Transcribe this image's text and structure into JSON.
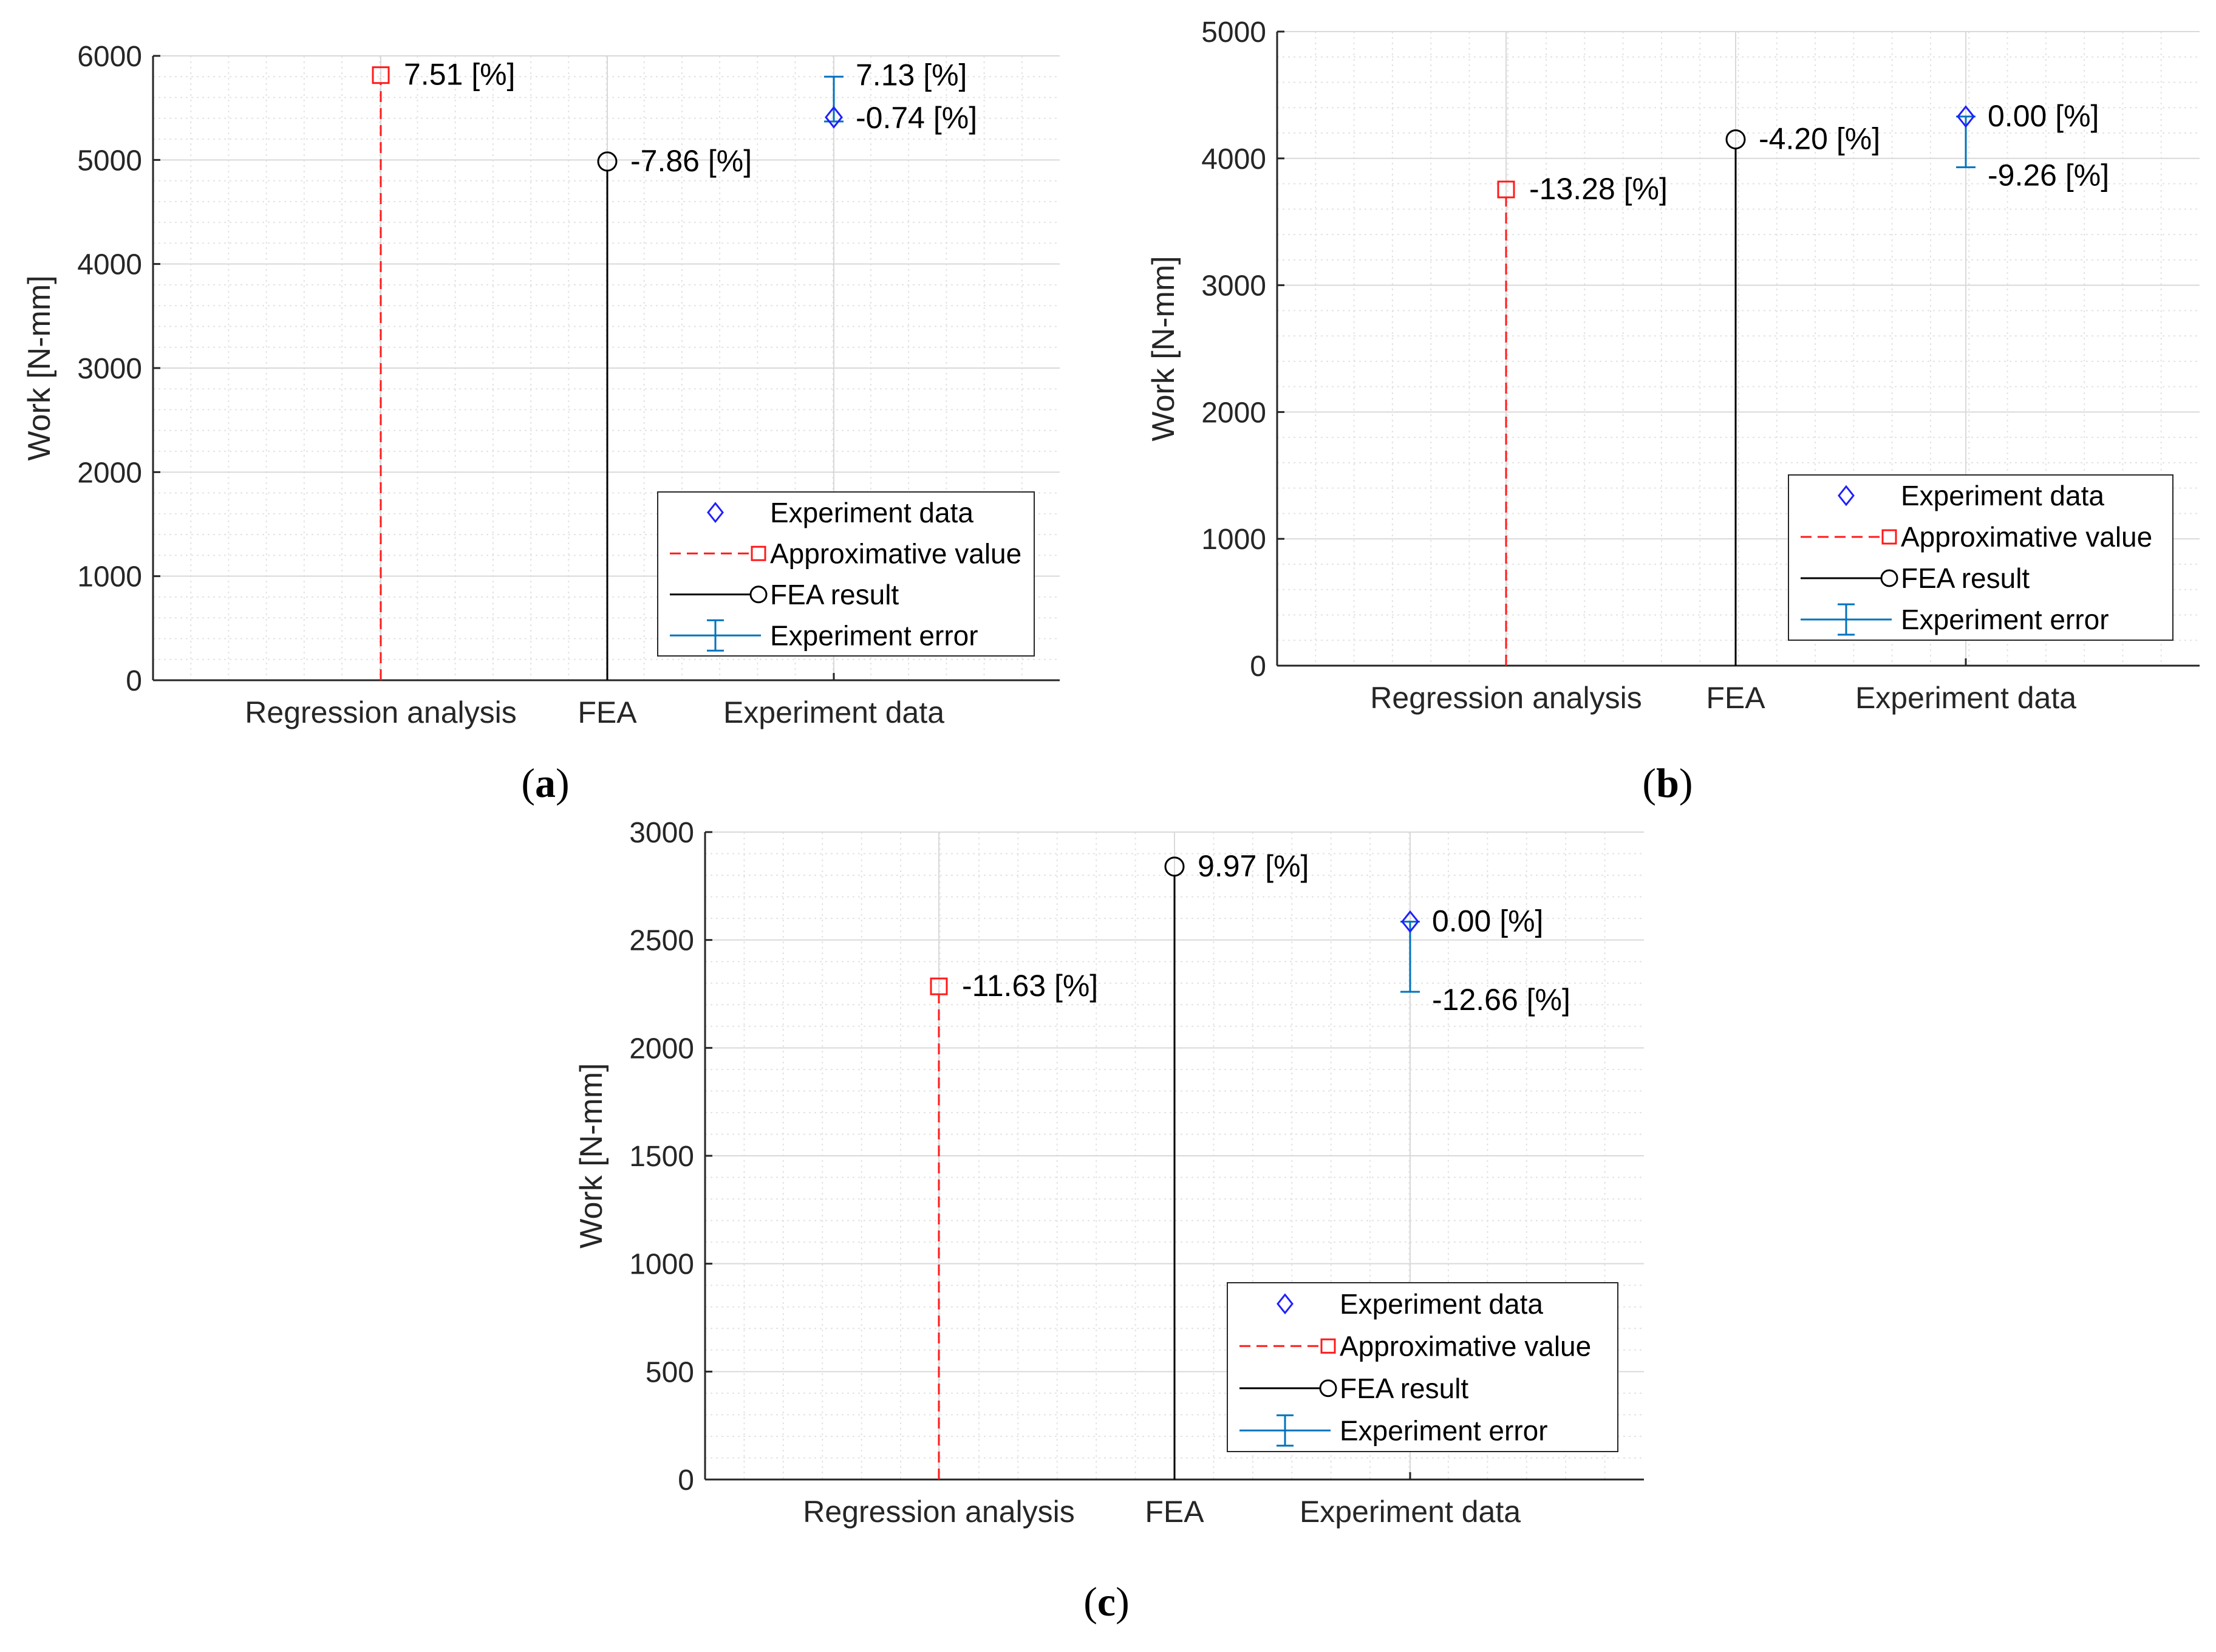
{
  "colors": {
    "approx": "#ff1a1a",
    "fea": "#000000",
    "experiment_marker": "#1f1fff",
    "experiment_error": "#0072bd",
    "grid": "#d9d9d9",
    "axis": "#262626"
  },
  "legend_labels": [
    "Experiment data",
    "Approximative value",
    "FEA result",
    "Experiment error"
  ],
  "chart_data": [
    {
      "panel": "a",
      "type": "stem-with-errorbar",
      "ylabel": "Work [N-mm]",
      "ylim": [
        0,
        6000
      ],
      "yticks": [
        0,
        1000,
        2000,
        3000,
        4000,
        5000,
        6000
      ],
      "categories": [
        "Regression analysis",
        "FEA",
        "Experiment data"
      ],
      "approximative_value": 5815,
      "approximative_label": "7.51 [%]",
      "fea_result": 4985,
      "fea_label": "-7.86 [%]",
      "experiment_value": 5410,
      "experiment_error_high": 5800,
      "experiment_error_low": 5370,
      "experiment_label_high": "7.13 [%]",
      "experiment_label_low": "-0.74 [%]",
      "legend": "lower-right"
    },
    {
      "panel": "b",
      "type": "stem-with-errorbar",
      "ylabel": "Work [N-mm]",
      "ylim": [
        0,
        5000
      ],
      "yticks": [
        0,
        1000,
        2000,
        3000,
        4000,
        5000
      ],
      "categories": [
        "Regression analysis",
        "FEA",
        "Experiment data"
      ],
      "approximative_value": 3755,
      "approximative_label": "-13.28 [%]",
      "fea_result": 4150,
      "fea_label": "-4.20 [%]",
      "experiment_value": 4330,
      "experiment_error_high": 4330,
      "experiment_error_low": 3930,
      "experiment_label_high": "0.00 [%]",
      "experiment_label_low": "-9.26 [%]",
      "legend": "lower-right"
    },
    {
      "panel": "c",
      "type": "stem-with-errorbar",
      "ylabel": "Work [N-mm]",
      "ylim": [
        0,
        3000
      ],
      "yticks": [
        0,
        500,
        1000,
        1500,
        2000,
        2500,
        3000
      ],
      "categories": [
        "Regression analysis",
        "FEA",
        "Experiment data"
      ],
      "approximative_value": 2285,
      "approximative_label": "-11.63 [%]",
      "fea_result": 2840,
      "fea_label": "9.97 [%]",
      "experiment_value": 2585,
      "experiment_error_high": 2585,
      "experiment_error_low": 2260,
      "experiment_label_high": "0.00 [%]",
      "experiment_label_low": "-12.66 [%]",
      "legend": "lower-right"
    }
  ]
}
